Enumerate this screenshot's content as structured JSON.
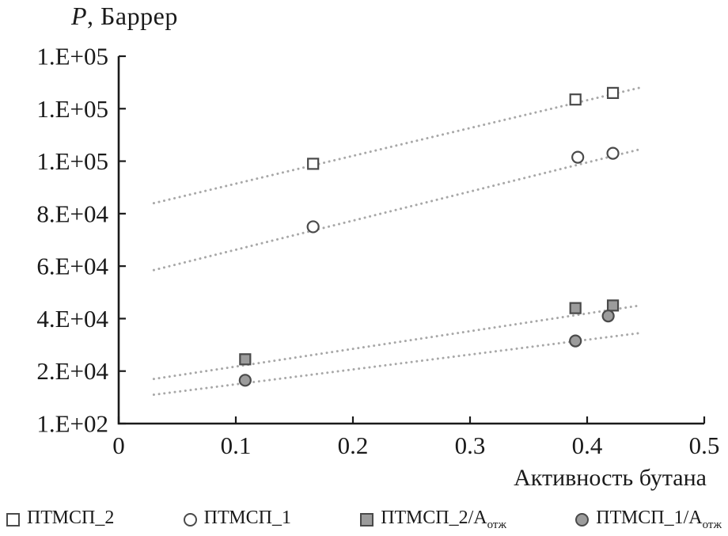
{
  "title": {
    "italic": "P",
    "rest": ", Баррер"
  },
  "chart_data": {
    "type": "scatter",
    "title": "P, Баррер",
    "xlabel": "Активность бутана",
    "ylabel": "P, Баррер",
    "xlim": [
      0,
      0.5
    ],
    "ylim": [
      0,
      140000
    ],
    "grid": false,
    "legend_position": "bottom",
    "x_ticks": [
      {
        "label": "0",
        "value": 0.0
      },
      {
        "label": "0.1",
        "value": 0.1
      },
      {
        "label": "0.2",
        "value": 0.2
      },
      {
        "label": "0.3",
        "value": 0.3
      },
      {
        "label": "0.4",
        "value": 0.4
      },
      {
        "label": "0.5",
        "value": 0.5
      }
    ],
    "y_ticks_top_to_bottom": [
      "1.E+05",
      "1.E+05",
      "1.E+05",
      "8.E+04",
      "6.E+04",
      "4.E+04",
      "2.E+04",
      "1.E+02"
    ],
    "series": [
      {
        "name": "ПТМСП_2",
        "marker": "open-square",
        "points": [
          [
            0.166,
            99000
          ],
          [
            0.39,
            123500
          ],
          [
            0.422,
            126000
          ]
        ],
        "trend": {
          "x1": 0.03,
          "y1": 84000,
          "x2": 0.445,
          "y2": 128000
        }
      },
      {
        "name": "ПТМСП_1",
        "marker": "open-circle",
        "points": [
          [
            0.166,
            75000
          ],
          [
            0.392,
            101500
          ],
          [
            0.422,
            103000
          ]
        ],
        "trend": {
          "x1": 0.03,
          "y1": 58500,
          "x2": 0.445,
          "y2": 104500
        }
      },
      {
        "name": "ПТМСП_2/А_отж",
        "marker": "filled-square",
        "points": [
          [
            0.108,
            24500
          ],
          [
            0.39,
            44000
          ],
          [
            0.422,
            45000
          ]
        ],
        "trend": {
          "x1": 0.03,
          "y1": 17000,
          "x2": 0.445,
          "y2": 45000
        }
      },
      {
        "name": "ПТМСП_1/А_отж",
        "marker": "filled-circle",
        "points": [
          [
            0.108,
            16500
          ],
          [
            0.39,
            31500
          ],
          [
            0.418,
            41000
          ]
        ],
        "trend": {
          "x1": 0.03,
          "y1": 11000,
          "x2": 0.445,
          "y2": 34500
        }
      }
    ]
  },
  "legend": {
    "items": [
      {
        "label": "ПТМСП_2",
        "sub": "",
        "marker": "open-square"
      },
      {
        "label": "ПТМСП_1",
        "sub": "",
        "marker": "open-circle"
      },
      {
        "label": "ПТМСП_2/А",
        "sub": "отж",
        "marker": "filled-square"
      },
      {
        "label": "ПТМСП_1/А",
        "sub": "отж",
        "marker": "filled-circle"
      }
    ]
  },
  "colors": {
    "axis": "#1a1a1a",
    "text": "#1a1a1a",
    "trend_dots": "#a8a8a8",
    "marker_stroke": "#4a4a4a",
    "filled_marker_fill": "#9c9c9c",
    "open_marker_fill": "#ffffff"
  }
}
